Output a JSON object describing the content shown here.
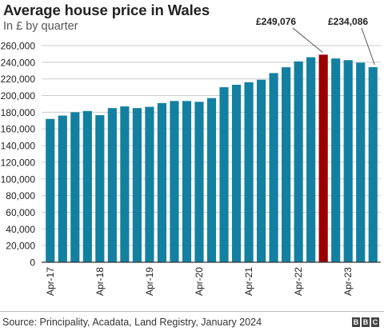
{
  "header": {
    "title": "Average house price in Wales",
    "subtitle": "In £ by quarter"
  },
  "footer": {
    "source": "Source: Principality, Acadata, Land Registry, January 2024",
    "logo_letters": [
      "B",
      "B",
      "C"
    ]
  },
  "colors": {
    "bar": "#1380a1",
    "highlight": "#990000",
    "grid": "#cbcbcb"
  },
  "chart_data": {
    "type": "bar",
    "categories": [
      "Apr-17",
      "Jul-17",
      "Oct-17",
      "Jan-18",
      "Apr-18",
      "Jul-18",
      "Oct-18",
      "Jan-19",
      "Apr-19",
      "Jul-19",
      "Oct-19",
      "Jan-20",
      "Apr-20",
      "Jul-20",
      "Oct-20",
      "Jan-21",
      "Apr-21",
      "Jul-21",
      "Oct-21",
      "Jan-22",
      "Apr-22",
      "Jul-22",
      "Oct-22",
      "Jan-23",
      "Apr-23",
      "Jul-23",
      "Oct-23"
    ],
    "values": [
      172000,
      176000,
      180000,
      181500,
      176500,
      185000,
      187000,
      185000,
      186500,
      191000,
      193500,
      193500,
      192500,
      197000,
      210000,
      213000,
      216000,
      219000,
      227000,
      234000,
      241000,
      246000,
      249076,
      244500,
      242500,
      239500,
      234086
    ],
    "highlight_index": 22,
    "x_tick_labels": [
      "Apr-17",
      "Apr-18",
      "Apr-19",
      "Apr-20",
      "Apr-21",
      "Apr-22",
      "Apr-23"
    ],
    "x_tick_indices": [
      0,
      4,
      8,
      12,
      16,
      20,
      24
    ],
    "y_ticks": [
      0,
      20000,
      40000,
      60000,
      80000,
      100000,
      120000,
      140000,
      160000,
      180000,
      200000,
      220000,
      240000,
      260000
    ],
    "y_tick_labels": [
      "0",
      "20,000",
      "40,000",
      "60,000",
      "80,000",
      "100,000",
      "120,000",
      "140,000",
      "160,000",
      "180,000",
      "200,000",
      "220,000",
      "240,000",
      "260,000"
    ],
    "ylim": [
      0,
      260000
    ],
    "annotations": [
      {
        "label": "£249,076",
        "index": 22
      },
      {
        "label": "£234,086",
        "index": 26
      }
    ],
    "title": "Average house price in Wales",
    "subtitle": "In £ by quarter",
    "grid": true
  }
}
